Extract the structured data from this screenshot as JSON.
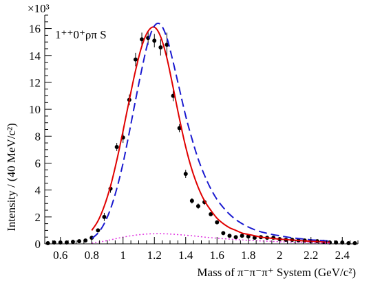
{
  "chart_data": {
    "type": "line",
    "annotation": "1⁺⁺0⁺ρπ S",
    "exponent_label": "×10³",
    "xlabel": "Mass of π⁻π⁻π⁺ System (GeV/c²)",
    "ylabel": "Intensity / (40 MeV/c²)",
    "xlim": [
      0.5,
      2.5
    ],
    "ylim": [
      0,
      17
    ],
    "x_ticks": [
      0.6,
      0.8,
      1,
      1.2,
      1.4,
      1.6,
      1.8,
      2,
      2.2,
      2.4
    ],
    "x_tick_labels": [
      "0.6",
      "0.8",
      "1",
      "1.2",
      "1.4",
      "1.6",
      "1.8",
      "2",
      "2.2",
      "2.4"
    ],
    "y_ticks": [
      0,
      2,
      4,
      6,
      8,
      10,
      12,
      14,
      16
    ],
    "y_tick_labels": [
      "0",
      "2",
      "4",
      "6",
      "8",
      "10",
      "12",
      "14",
      "16"
    ],
    "grid": false,
    "series": [
      {
        "style": "points-with-error-bars",
        "color": "#000000",
        "x": [
          0.52,
          0.56,
          0.6,
          0.64,
          0.68,
          0.72,
          0.76,
          0.8,
          0.84,
          0.88,
          0.92,
          0.96,
          1.0,
          1.04,
          1.08,
          1.12,
          1.16,
          1.2,
          1.24,
          1.28,
          1.32,
          1.36,
          1.4,
          1.44,
          1.48,
          1.52,
          1.56,
          1.6,
          1.64,
          1.68,
          1.72,
          1.76,
          1.8,
          1.84,
          1.88,
          1.92,
          1.96,
          2.0,
          2.04,
          2.08,
          2.12,
          2.16,
          2.2,
          2.24,
          2.28,
          2.32,
          2.36,
          2.4,
          2.44,
          2.48
        ],
        "y": [
          0.05,
          0.1,
          0.1,
          0.1,
          0.15,
          0.2,
          0.25,
          0.45,
          1.0,
          2.0,
          4.1,
          7.2,
          7.9,
          10.7,
          13.7,
          15.2,
          15.3,
          15.1,
          14.6,
          14.8,
          11.0,
          8.6,
          5.2,
          3.2,
          2.8,
          3.1,
          2.2,
          1.6,
          0.8,
          0.6,
          0.5,
          0.6,
          0.55,
          0.45,
          0.5,
          0.45,
          0.45,
          0.35,
          0.3,
          0.3,
          0.25,
          0.25,
          0.2,
          0.2,
          0.15,
          0.1,
          0.1,
          0.1,
          0.05,
          0.05
        ],
        "err": [
          0.05,
          0.05,
          0.05,
          0.05,
          0.05,
          0.05,
          0.1,
          0.15,
          0.15,
          0.3,
          0.3,
          0.3,
          0.4,
          0.4,
          0.5,
          0.5,
          0.5,
          0.5,
          0.6,
          0.9,
          0.4,
          0.3,
          0.3,
          0.2,
          0.2,
          0.2,
          0.1,
          0.1,
          0.1,
          0.05,
          0.05,
          0.05,
          0.05,
          0.05,
          0.05,
          0.05,
          0.05,
          0.05,
          0.05,
          0.05,
          0.05,
          0.05,
          0.05,
          0.05,
          0.05,
          0.05,
          0.05,
          0.05,
          0.05,
          0.05
        ]
      },
      {
        "style": "solid",
        "color": "#e00000",
        "x": [
          0.8,
          0.84,
          0.88,
          0.92,
          0.96,
          1.0,
          1.04,
          1.08,
          1.12,
          1.16,
          1.2,
          1.24,
          1.28,
          1.32,
          1.36,
          1.4,
          1.44,
          1.48,
          1.52,
          1.56,
          1.6,
          1.64,
          1.68,
          1.72,
          1.76,
          1.8,
          1.84,
          1.88,
          1.92,
          1.96,
          2.0,
          2.04,
          2.08,
          2.12,
          2.16,
          2.2,
          2.24,
          2.28,
          2.32
        ],
        "y": [
          1.0,
          1.7,
          2.8,
          4.3,
          6.2,
          8.4,
          10.7,
          12.9,
          14.7,
          15.8,
          16.1,
          15.4,
          13.8,
          11.6,
          9.3,
          7.2,
          5.5,
          4.2,
          3.2,
          2.5,
          1.9,
          1.5,
          1.2,
          1.0,
          0.8,
          0.7,
          0.6,
          0.5,
          0.45,
          0.4,
          0.35,
          0.32,
          0.28,
          0.25,
          0.22,
          0.2,
          0.18,
          0.15,
          0.13
        ]
      },
      {
        "style": "dashed",
        "color": "#1a1ad0",
        "x": [
          0.8,
          0.84,
          0.88,
          0.92,
          0.96,
          1.0,
          1.04,
          1.08,
          1.12,
          1.16,
          1.2,
          1.24,
          1.28,
          1.32,
          1.36,
          1.4,
          1.44,
          1.48,
          1.52,
          1.56,
          1.6,
          1.64,
          1.68,
          1.72,
          1.76,
          1.8,
          1.84,
          1.88,
          1.92,
          1.96,
          2.0,
          2.04,
          2.08,
          2.12,
          2.16,
          2.2,
          2.24,
          2.28,
          2.32
        ],
        "y": [
          0.4,
          0.8,
          1.5,
          2.6,
          4.1,
          6.0,
          8.3,
          10.7,
          13.0,
          15.0,
          16.2,
          16.3,
          15.3,
          13.5,
          11.5,
          9.5,
          7.8,
          6.3,
          5.1,
          4.1,
          3.3,
          2.7,
          2.2,
          1.8,
          1.5,
          1.25,
          1.05,
          0.9,
          0.78,
          0.68,
          0.6,
          0.52,
          0.45,
          0.4,
          0.35,
          0.3,
          0.27,
          0.24,
          0.2
        ]
      },
      {
        "style": "dotted",
        "color": "#e030e0",
        "x": [
          0.8,
          0.88,
          0.96,
          1.04,
          1.12,
          1.2,
          1.28,
          1.36,
          1.44,
          1.52,
          1.6,
          1.68,
          1.76,
          1.84,
          1.92,
          2.0,
          2.08,
          2.16,
          2.24,
          2.32
        ],
        "y": [
          0.05,
          0.2,
          0.4,
          0.58,
          0.7,
          0.75,
          0.74,
          0.68,
          0.6,
          0.5,
          0.42,
          0.35,
          0.29,
          0.24,
          0.2,
          0.16,
          0.12,
          0.09,
          0.07,
          0.05
        ]
      }
    ]
  }
}
